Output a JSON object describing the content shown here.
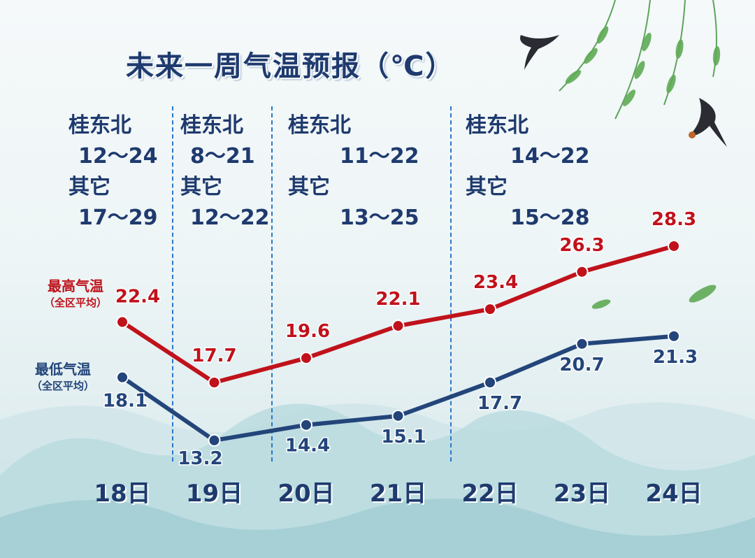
{
  "title": "未来一周气温预报（℃）",
  "ranges": [
    {
      "label1": "桂东北",
      "value1": "12～24",
      "label2": "其它",
      "value2": "17～29"
    },
    {
      "label1": "桂东北",
      "value1": "8～21",
      "label2": "其它",
      "value2": "12～22"
    },
    {
      "label1": "桂东北",
      "value1": "11～22",
      "label2": "其它",
      "value2": "13～25"
    },
    {
      "label1": "桂东北",
      "value1": "14～22",
      "label2": "其它",
      "value2": "15～28"
    }
  ],
  "legend": {
    "high_main": "最高气温",
    "high_sub": "（全区平均）",
    "low_main": "最低气温",
    "low_sub": "（全区平均）"
  },
  "colors": {
    "high": "#c0121b",
    "low": "#23457a",
    "divider": "#2a77c9",
    "title": "#1e3a6e"
  },
  "chart_data": {
    "type": "line",
    "categories": [
      "18日",
      "19日",
      "20日",
      "21日",
      "22日",
      "23日",
      "24日"
    ],
    "series": [
      {
        "name": "最高气温（全区平均）",
        "values": [
          22.4,
          17.7,
          19.6,
          22.1,
          23.4,
          26.3,
          28.3
        ]
      },
      {
        "name": "最低气温（全区平均）",
        "values": [
          18.1,
          13.2,
          14.4,
          15.1,
          17.7,
          20.7,
          21.3
        ]
      }
    ],
    "title": "未来一周气温预报（℃）",
    "xlabel": "",
    "ylabel": "",
    "grid": false,
    "legend": "left"
  }
}
